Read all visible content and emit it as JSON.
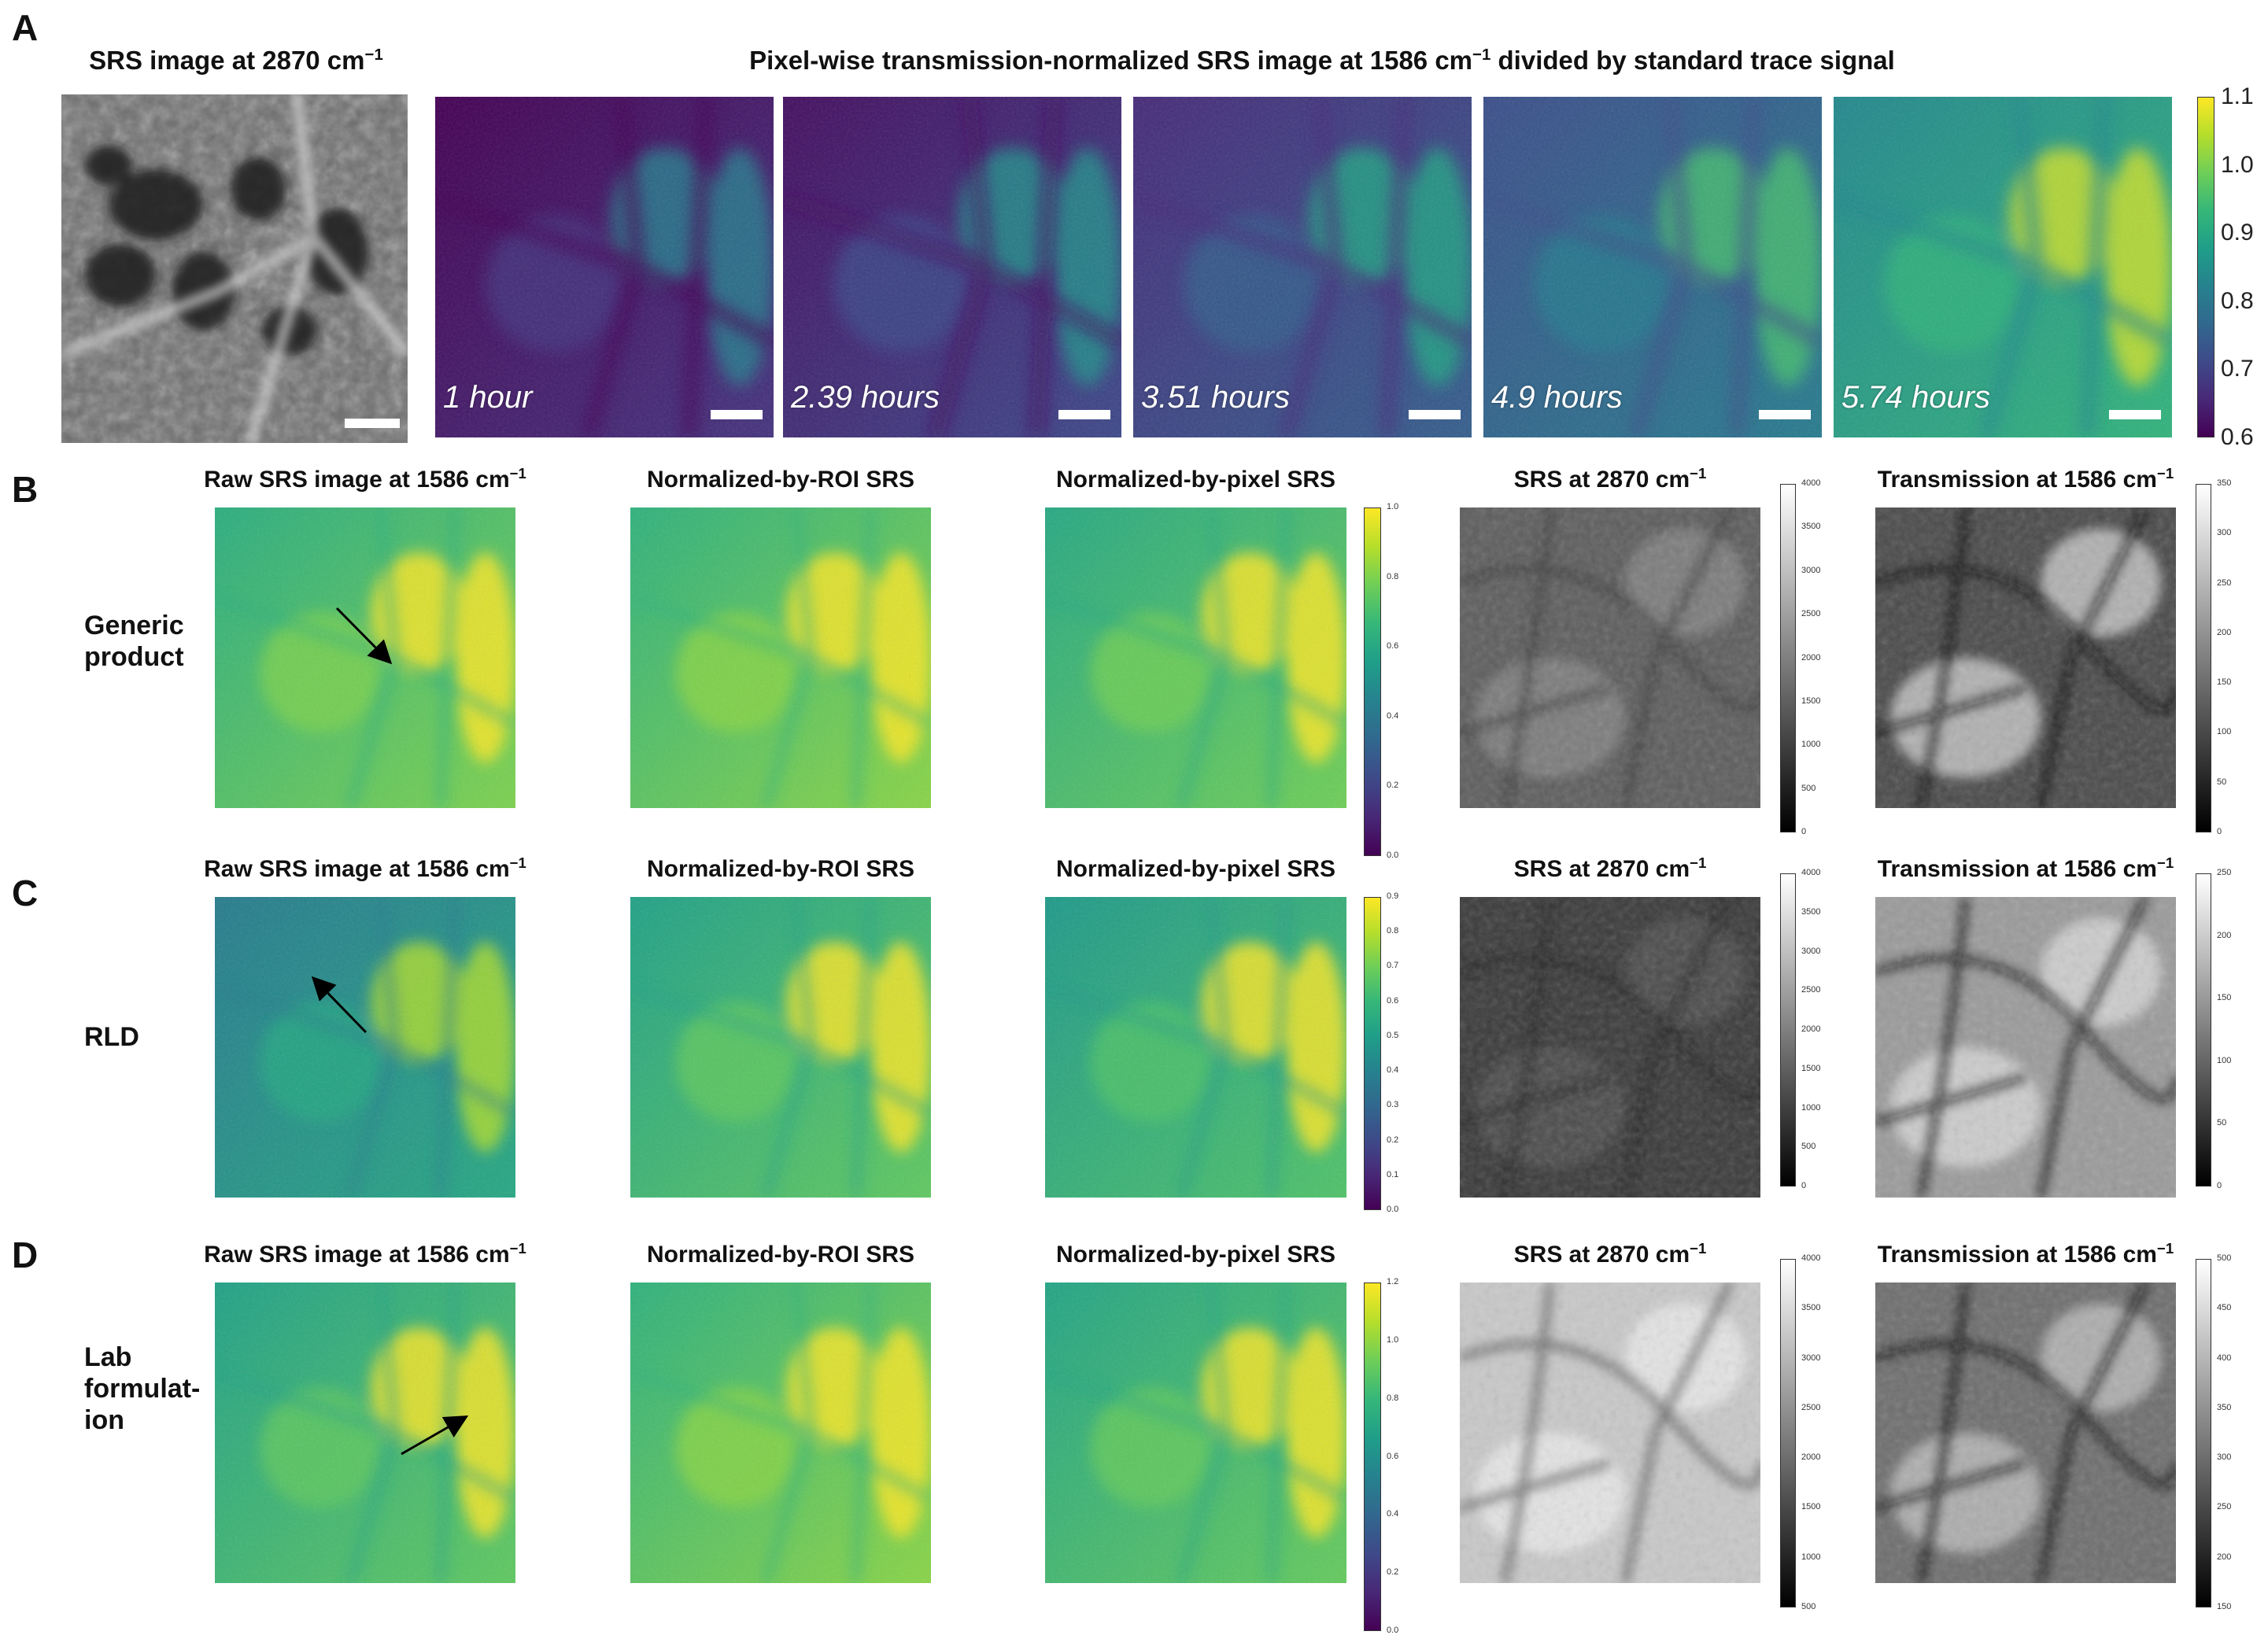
{
  "colors": {
    "viridis": [
      "#440154",
      "#482878",
      "#3e4a89",
      "#31688e",
      "#26828e",
      "#1f9e89",
      "#35b779",
      "#6ece58",
      "#b5de2b",
      "#fde725"
    ],
    "gray": [
      "#000000",
      "#ffffff"
    ]
  },
  "panelA": {
    "label": "A",
    "left_title": "SRS image at 2870 cm",
    "left_title_sup": "−1",
    "main_title": "Pixel-wise transmission-normalized SRS image at 1586 cm",
    "main_title_sup": "−1",
    "main_title_tail": " divided by standard trace signal",
    "times": [
      "1 hour",
      "2.39 hours",
      "3.51 hours",
      "4.9 hours",
      "5.74 hours"
    ],
    "time_levels": [
      0.15,
      0.22,
      0.3,
      0.42,
      0.65
    ],
    "colorbar_ticks": [
      "1.1",
      "1.0",
      "0.9",
      "0.8",
      "0.7",
      "0.6"
    ]
  },
  "rows": [
    {
      "label": "B",
      "name": [
        "Generic",
        "product"
      ],
      "titles": {
        "raw": "Raw SRS image at 1586 cm",
        "roi": "Normalized-by-ROI SRS",
        "pix": "Normalized-by-pixel SRS",
        "srs": "SRS  at 2870 cm",
        "trans": "Transmission at 1586 cm"
      },
      "sup": "−1",
      "viridis_ticks": [
        "1.0",
        "0.8",
        "0.6",
        "0.4",
        "0.2",
        "0.0"
      ],
      "srs_ticks": [
        "4000",
        "3500",
        "3000",
        "2500",
        "2000",
        "1500",
        "1000",
        "500",
        "0"
      ],
      "trans_ticks": [
        "350",
        "300",
        "250",
        "200",
        "150",
        "100",
        "50",
        "0"
      ]
    },
    {
      "label": "C",
      "name": [
        "RLD"
      ],
      "titles": {
        "raw": "Raw SRS image at 1586 cm",
        "roi": "Normalized-by-ROI SRS",
        "pix": "Normalized-by-pixel SRS",
        "srs": "SRS  at 2870 cm",
        "trans": "Transmission at 1586 cm"
      },
      "sup": "−1",
      "viridis_ticks": [
        "0.9",
        "0.8",
        "0.7",
        "0.6",
        "0.5",
        "0.4",
        "0.3",
        "0.2",
        "0.1",
        "0.0"
      ],
      "srs_ticks": [
        "4000",
        "3500",
        "3000",
        "2500",
        "2000",
        "1500",
        "1000",
        "500",
        "0"
      ],
      "trans_ticks": [
        "250",
        "200",
        "150",
        "100",
        "50",
        "0"
      ]
    },
    {
      "label": "D",
      "name": [
        "Lab",
        "formulat-",
        "ion"
      ],
      "titles": {
        "raw": "Raw SRS image at 1586 cm",
        "roi": "Normalized-by-ROI SRS",
        "pix": "Normalized-by-pixel SRS",
        "srs": "SRS  at 2870 cm",
        "trans": "Transmission at 1586 cm"
      },
      "sup": "−1",
      "viridis_ticks": [
        "1.2",
        "1.0",
        "0.8",
        "0.6",
        "0.4",
        "0.2",
        "0.0"
      ],
      "srs_ticks": [
        "4000",
        "3500",
        "3000",
        "2500",
        "2000",
        "1500",
        "1000",
        "500"
      ],
      "trans_ticks": [
        "500",
        "450",
        "400",
        "350",
        "300",
        "250",
        "200",
        "150"
      ]
    }
  ]
}
